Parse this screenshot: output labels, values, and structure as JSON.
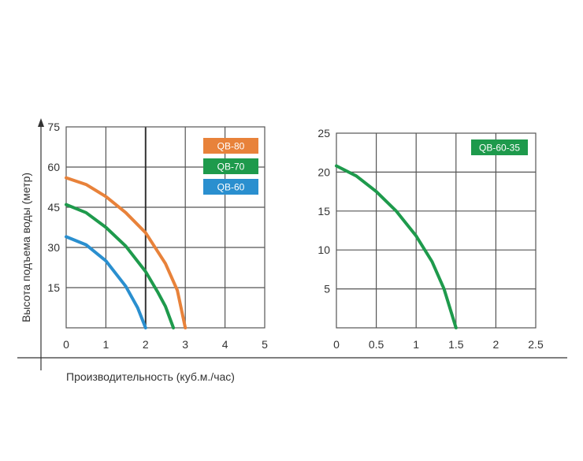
{
  "ylabel": "Высота подъема воды (метр)",
  "xlabel": "Производительность (куб.м./час)",
  "chart_data": [
    {
      "type": "line",
      "xlim": [
        0,
        5
      ],
      "ylim": [
        0,
        75
      ],
      "x_ticks": [
        "0",
        "1",
        "2",
        "3",
        "4",
        "5"
      ],
      "y_ticks": [
        "15",
        "30",
        "45",
        "60",
        "75"
      ],
      "grid": true,
      "legend_position": "top-right",
      "series": [
        {
          "name": "QB-80",
          "color": "#e8823a",
          "x": [
            0,
            0.5,
            1,
            1.5,
            2,
            2.5,
            2.8,
            3
          ],
          "y": [
            56,
            53.5,
            49,
            43,
            35.5,
            24,
            14,
            0
          ]
        },
        {
          "name": "QB-70",
          "color": "#1e9a4c",
          "x": [
            0,
            0.5,
            1,
            1.5,
            2,
            2.3,
            2.5,
            2.7
          ],
          "y": [
            46,
            43,
            37.5,
            30.5,
            21,
            13.5,
            8,
            0
          ]
        },
        {
          "name": "QB-60",
          "color": "#2a8fcf",
          "x": [
            0,
            0.5,
            1,
            1.5,
            1.8,
            2
          ],
          "y": [
            34,
            31,
            25,
            15.5,
            7.5,
            0
          ]
        }
      ]
    },
    {
      "type": "line",
      "xlim": [
        0,
        2.5
      ],
      "ylim": [
        0,
        25
      ],
      "x_ticks": [
        "0",
        "0.5",
        "1",
        "1.5",
        "2",
        "2.5"
      ],
      "y_ticks": [
        "5",
        "10",
        "15",
        "20",
        "25"
      ],
      "grid": true,
      "legend_position": "top-right",
      "series": [
        {
          "name": "QB-60-35",
          "color": "#1e9a4c",
          "x": [
            0,
            0.25,
            0.5,
            0.75,
            1,
            1.2,
            1.35,
            1.5
          ],
          "y": [
            20.8,
            19.5,
            17.5,
            15,
            11.8,
            8.5,
            5,
            0
          ]
        }
      ]
    }
  ]
}
